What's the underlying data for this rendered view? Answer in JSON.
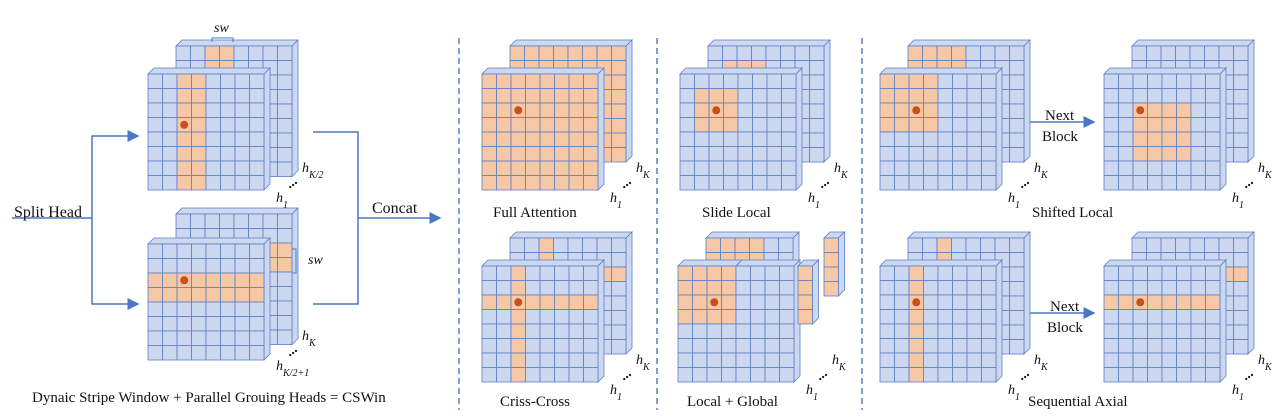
{
  "colors": {
    "cell": "#ccd8f0",
    "highlight": "#f6c8a6",
    "grid": "#5d7fc6",
    "dot": "#c8501c",
    "arrow": "#4a78c0",
    "divider": "#3b5ea8"
  },
  "left": {
    "split_head": "Split Head",
    "concat": "Concat",
    "sw": "sw",
    "caption": "Dynaic Stripe Window + Parallel Grouing Heads = CSWin"
  },
  "heads": {
    "hk_base": "h",
    "hk_sub": "K",
    "hk2_sub": "K/2",
    "hk21_sub": "K/2+1",
    "h1_sub": "1",
    "dots": "..."
  },
  "panels": {
    "full_attention": "Full Attention",
    "slide_local": "Slide Local",
    "shifted_local": "Shifted Local",
    "criss_cross": "Criss-Cross",
    "local_global": "Local + Global",
    "sequential_axial": "Sequential Axial",
    "next_block_1": "Next",
    "next_block_2": "Block"
  }
}
